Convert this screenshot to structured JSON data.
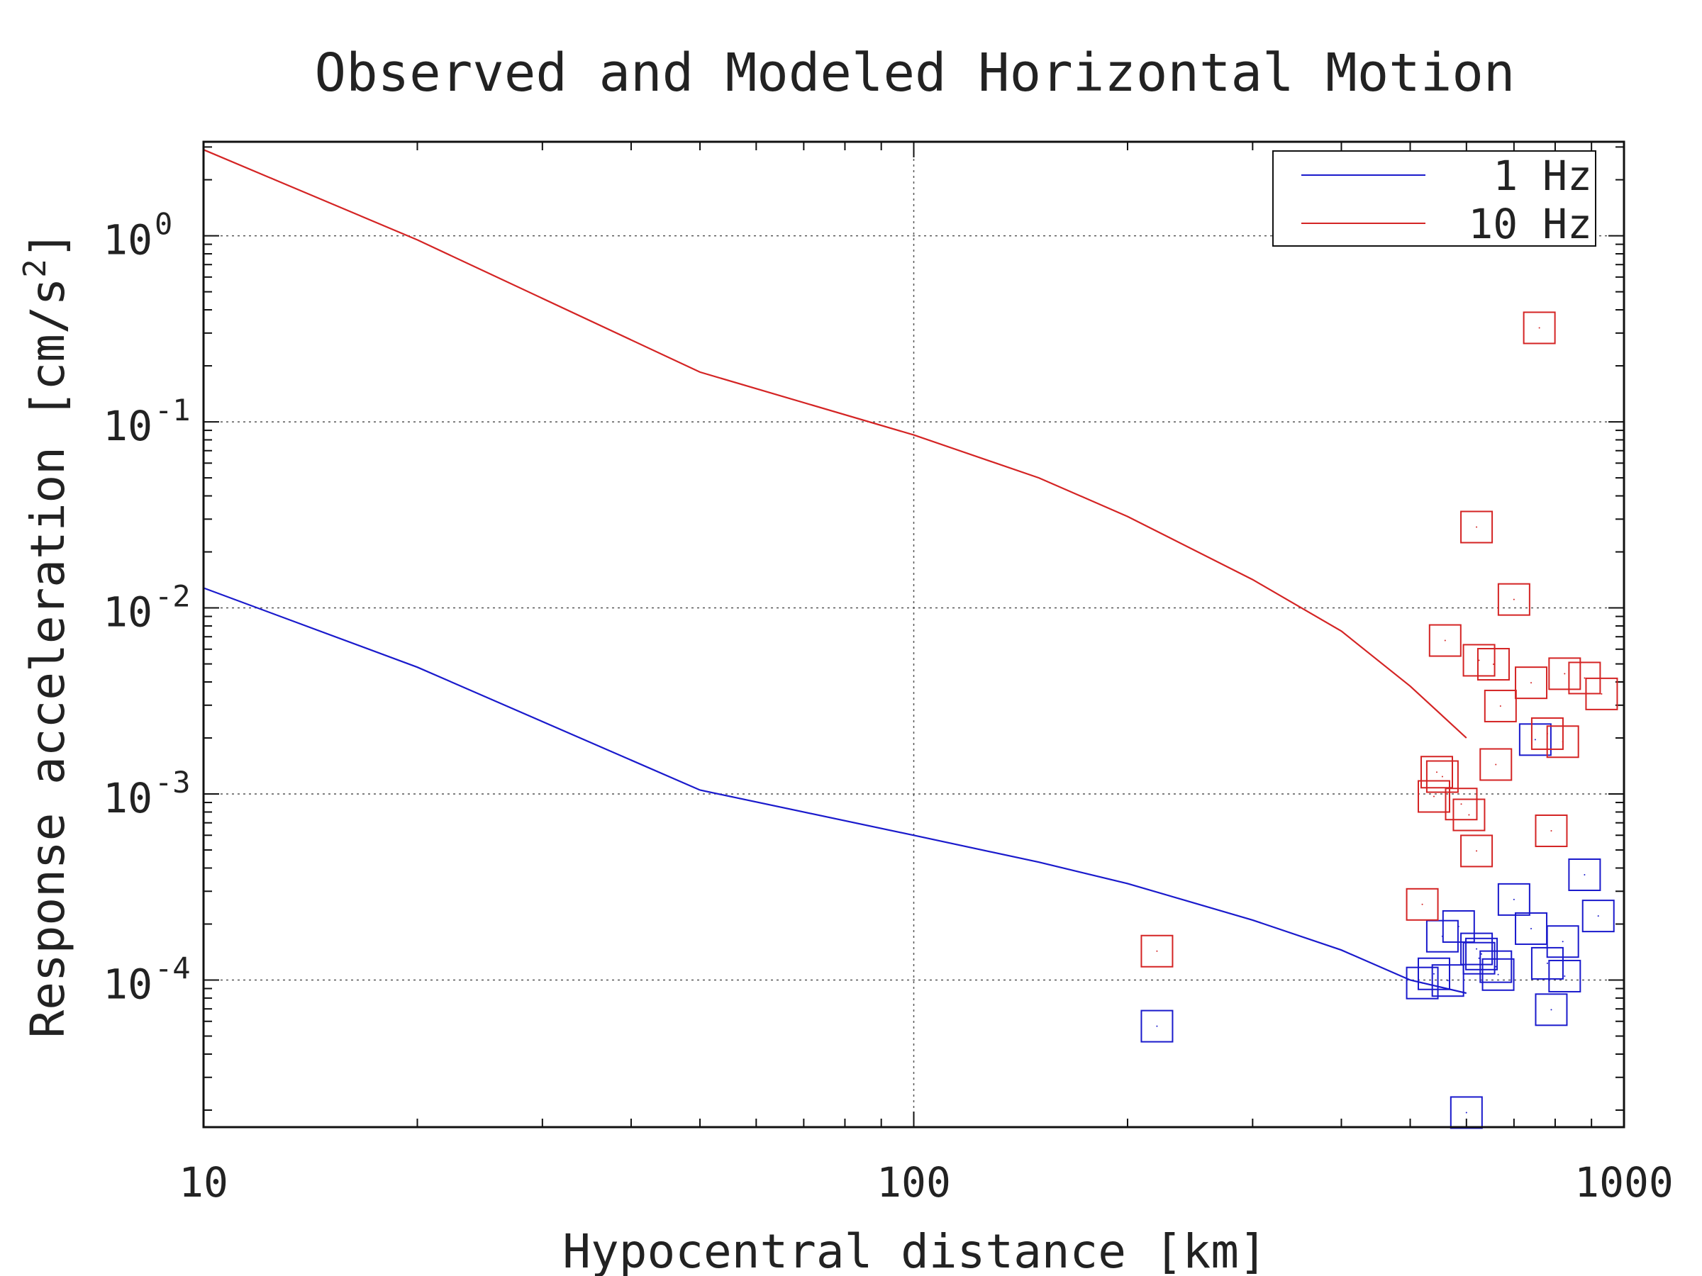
{
  "chart_data": {
    "type": "scatter",
    "title": "Observed and Modeled Horizontal Motion",
    "xlabel": "Hypocentral distance [km]",
    "ylabel": "Response acceleration [cm/s",
    "ylabel_sup": "2",
    "ylabel_end": "]",
    "xscale": "log",
    "yscale": "log",
    "xlim": [
      10,
      1000
    ],
    "ylim": [
      1.62e-05,
      3.2
    ],
    "grid": true,
    "legend_position": "top-right",
    "x_ticks": [
      {
        "value": 10,
        "label": "10"
      },
      {
        "value": 100,
        "label": "100"
      },
      {
        "value": 1000,
        "label": "1000"
      }
    ],
    "y_ticks": [
      {
        "value": 1,
        "base": "10",
        "exp": "0"
      },
      {
        "value": 0.1,
        "base": "10",
        "exp": "-1"
      },
      {
        "value": 0.01,
        "base": "10",
        "exp": "-2"
      },
      {
        "value": 0.001,
        "base": "10",
        "exp": "-3"
      },
      {
        "value": 0.0001,
        "base": "10",
        "exp": "-4"
      }
    ],
    "series": [
      {
        "name": "1 Hz",
        "color": "#1a1acc",
        "model": [
          [
            10,
            0.0128
          ],
          [
            20,
            0.0048
          ],
          [
            50,
            0.00105
          ],
          [
            100,
            0.0006
          ],
          [
            150,
            0.00043
          ],
          [
            200,
            0.00033
          ],
          [
            300,
            0.00021
          ],
          [
            400,
            0.000145
          ],
          [
            500,
            0.0001
          ],
          [
            600,
            8.5e-05
          ]
        ],
        "observed": [
          [
            220,
            5.65e-05
          ],
          [
            520,
            9.64e-05
          ],
          [
            540,
            0.000108
          ],
          [
            555,
            0.000172
          ],
          [
            565,
            9.94e-05
          ],
          [
            585,
            0.000194
          ],
          [
            600,
            1.94e-05
          ],
          [
            620,
            0.000147
          ],
          [
            625,
            0.000131
          ],
          [
            630,
            0.000138
          ],
          [
            660,
            0.000118
          ],
          [
            665,
            0.000107
          ],
          [
            700,
            0.000271
          ],
          [
            740,
            0.000189
          ],
          [
            750,
            0.00196
          ],
          [
            780,
            0.000123
          ],
          [
            790,
            6.93e-05
          ],
          [
            820,
            0.000161
          ],
          [
            825,
            0.000105
          ],
          [
            880,
            0.000368
          ],
          [
            920,
            0.000221
          ]
        ]
      },
      {
        "name": "10 Hz",
        "color": "#d42424",
        "model": [
          [
            10,
            2.9
          ],
          [
            20,
            0.95
          ],
          [
            50,
            0.185
          ],
          [
            100,
            0.085
          ],
          [
            150,
            0.05
          ],
          [
            200,
            0.031
          ],
          [
            300,
            0.0142
          ],
          [
            400,
            0.0075
          ],
          [
            500,
            0.0038
          ],
          [
            600,
            0.002
          ]
        ],
        "observed": [
          [
            220,
            0.000143
          ],
          [
            520,
            0.000255
          ],
          [
            540,
            0.00097
          ],
          [
            545,
            0.00131
          ],
          [
            555,
            0.00124
          ],
          [
            560,
            0.00668
          ],
          [
            590,
            0.000883
          ],
          [
            605,
            0.000772
          ],
          [
            620,
            0.0272
          ],
          [
            620,
            0.000494
          ],
          [
            625,
            0.00523
          ],
          [
            655,
            0.00498
          ],
          [
            660,
            0.00144
          ],
          [
            670,
            0.00297
          ],
          [
            700,
            0.0111
          ],
          [
            740,
            0.00396
          ],
          [
            760,
            0.32
          ],
          [
            780,
            0.00211
          ],
          [
            790,
            0.000634
          ],
          [
            820,
            0.00191
          ],
          [
            825,
            0.00443
          ],
          [
            880,
            0.0042
          ],
          [
            930,
            0.00345
          ]
        ]
      }
    ]
  }
}
